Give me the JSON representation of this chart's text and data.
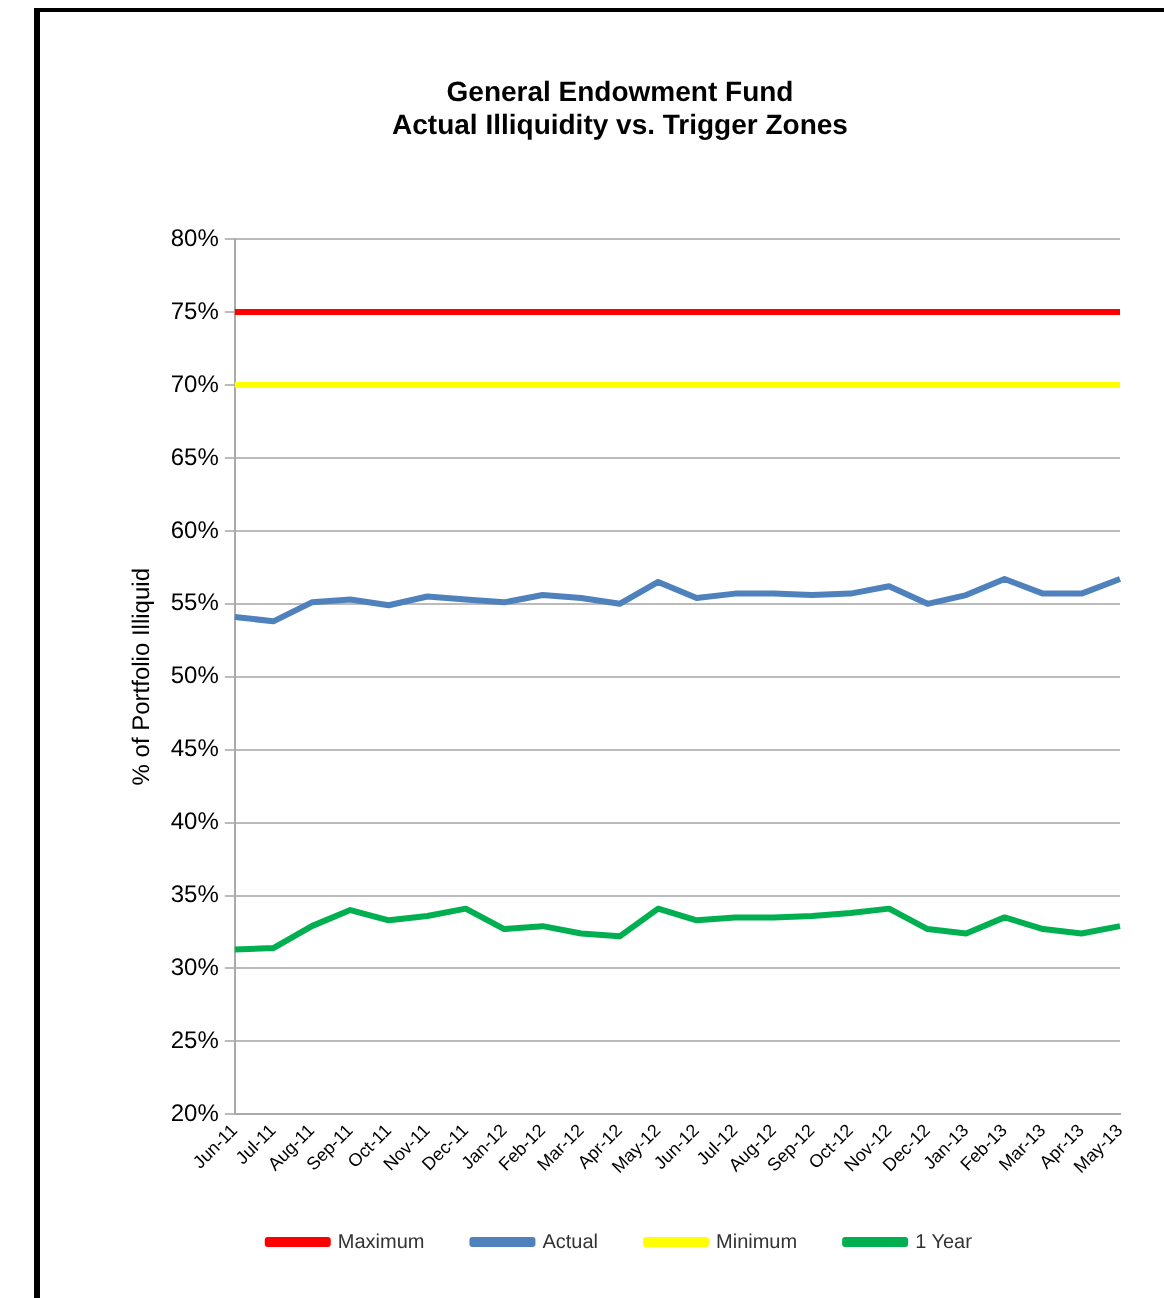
{
  "chart_data": {
    "type": "line",
    "title": "General Endowment Fund\nActual Illiquidity vs. Trigger Zones",
    "ylabel": "% of Portfolio Illiquid",
    "categories": [
      "Jun-11",
      "Jul-11",
      "Aug-11",
      "Sep-11",
      "Oct-11",
      "Nov-11",
      "Dec-11",
      "Jan-12",
      "Feb-12",
      "Mar-12",
      "Apr-12",
      "May-12",
      "Jun-12",
      "Jul-12",
      "Aug-12",
      "Sep-12",
      "Oct-12",
      "Nov-12",
      "Dec-12",
      "Jan-13",
      "Feb-13",
      "Mar-13",
      "Apr-13",
      "May-13"
    ],
    "series": [
      {
        "name": "Maximum",
        "color": "#ff0000",
        "values": [
          75,
          75,
          75,
          75,
          75,
          75,
          75,
          75,
          75,
          75,
          75,
          75,
          75,
          75,
          75,
          75,
          75,
          75,
          75,
          75,
          75,
          75,
          75,
          75
        ]
      },
      {
        "name": "Actual",
        "color": "#4f81bd",
        "values": [
          54.1,
          53.8,
          55.1,
          55.3,
          54.9,
          55.5,
          55.3,
          55.1,
          55.6,
          55.4,
          55.0,
          56.5,
          55.4,
          55.7,
          55.7,
          55.6,
          55.7,
          56.2,
          55.0,
          55.6,
          56.7,
          55.7,
          55.7,
          56.7
        ]
      },
      {
        "name": "Minimum",
        "color": "#ffff00",
        "values": [
          70,
          70,
          70,
          70,
          70,
          70,
          70,
          70,
          70,
          70,
          70,
          70,
          70,
          70,
          70,
          70,
          70,
          70,
          70,
          70,
          70,
          70,
          70,
          70
        ]
      },
      {
        "name": "1 Year",
        "color": "#00b050",
        "values": [
          31.3,
          31.4,
          32.9,
          34.0,
          33.3,
          33.6,
          34.1,
          32.7,
          32.9,
          32.4,
          32.2,
          34.1,
          33.3,
          33.5,
          33.5,
          33.6,
          33.8,
          34.1,
          32.7,
          32.4,
          33.5,
          32.7,
          32.4,
          32.9
        ]
      }
    ],
    "ylim": [
      20,
      80
    ],
    "yticks": [
      {
        "value": 20,
        "label": "20%"
      },
      {
        "value": 25,
        "label": "25%"
      },
      {
        "value": 30,
        "label": "30%"
      },
      {
        "value": 35,
        "label": "35%"
      },
      {
        "value": 40,
        "label": "40%"
      },
      {
        "value": 45,
        "label": "45%"
      },
      {
        "value": 50,
        "label": "50%"
      },
      {
        "value": 55,
        "label": "55%"
      },
      {
        "value": 60,
        "label": "60%"
      },
      {
        "value": 65,
        "label": "65%"
      },
      {
        "value": 70,
        "label": "70%"
      },
      {
        "value": 75,
        "label": "75%"
      },
      {
        "value": 80,
        "label": "80%"
      }
    ],
    "grid": "y",
    "legend": "bottom",
    "marker": "none",
    "line_style": "solid"
  }
}
